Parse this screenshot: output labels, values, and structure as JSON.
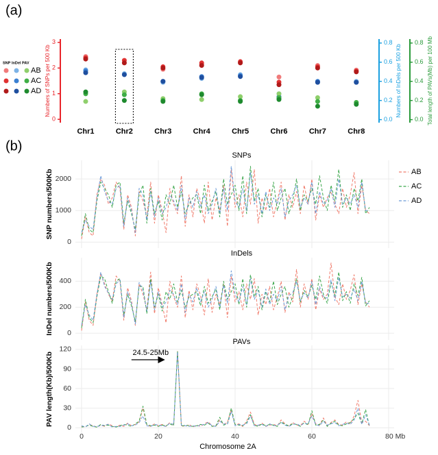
{
  "chart_data": [
    {
      "type": "dot",
      "panel": "(a)",
      "categories": [
        "Chr1",
        "Chr2",
        "Chr3",
        "Chr4",
        "Chr5",
        "Chr6",
        "Chr7",
        "Chr8"
      ],
      "highlight": "Chr2",
      "legend_keys": [
        "AB",
        "AC",
        "AD"
      ],
      "groups": [
        {
          "name": "SNP",
          "ylabel": "Numbers of SNPs per 500 Kb",
          "axis_color": "#e8242a",
          "ylim": [
            -0.05,
            3.05
          ],
          "yticks": [
            0,
            1,
            2,
            3
          ],
          "colors": [
            "#f07b7b",
            "#e03232",
            "#b01a1a"
          ],
          "values": [
            [
              2.45,
              2.2,
              1.95,
              2.15,
              2.2,
              1.65,
              2.1,
              1.92
            ],
            [
              2.4,
              2.3,
              2.05,
              2.2,
              2.25,
              1.45,
              2.05,
              1.88
            ],
            [
              2.35,
              2.2,
              2.0,
              2.1,
              2.2,
              1.35,
              2.0,
              1.85
            ]
          ]
        },
        {
          "name": "InDel",
          "ylabel": "Numbers of InDels per 500 Kb",
          "axis_color": "#1aa0e0",
          "ylim": [
            -0.01,
            0.82
          ],
          "yticks": [
            {
              "value": 0,
              "label": "0.0"
            },
            {
              "value": 0.2,
              "label": "0.2"
            },
            {
              "value": 0.4,
              "label": "0.4"
            },
            {
              "value": 0.6,
              "label": "0.6"
            },
            {
              "value": 0.8,
              "label": "0.8"
            }
          ],
          "colors": [
            "#7db3e6",
            "#3b80d2",
            "#1f4f9f"
          ],
          "values": [
            [
              0.52,
              0.48,
              0.39,
              0.43,
              0.47,
              0.27,
              0.39,
              0.4
            ],
            [
              0.51,
              0.47,
              0.4,
              0.45,
              0.46,
              0.24,
              0.4,
              0.39
            ],
            [
              0.49,
              0.47,
              0.4,
              0.44,
              0.45,
              0.22,
              0.39,
              0.39
            ]
          ]
        },
        {
          "name": "PAV",
          "ylabel": "Total length of PAVs(Mb) per 100 Mb",
          "axis_color": "#2a9a3a",
          "ylim": [
            -0.01,
            0.82
          ],
          "yticks": [
            {
              "value": 0,
              "label": "0.0"
            },
            {
              "value": 0.2,
              "label": "0.2"
            },
            {
              "value": 0.4,
              "label": "0.4"
            },
            {
              "value": 0.6,
              "label": "0.6"
            },
            {
              "value": 0.8,
              "label": "0.8"
            }
          ],
          "colors": [
            "#8fcf6c",
            "#3fae46",
            "#1e8a2e"
          ],
          "values": [
            [
              0.19,
              0.29,
              0.22,
              0.21,
              0.24,
              0.27,
              0.23,
              0.18
            ],
            [
              0.27,
              0.26,
              0.2,
              0.27,
              0.2,
              0.23,
              0.19,
              0.18
            ],
            [
              0.29,
              0.2,
              0.19,
              0.26,
              0.19,
              0.21,
              0.14,
              0.16
            ]
          ]
        }
      ]
    },
    {
      "type": "line",
      "panel": "(b)",
      "xlabel": "Chromosome 2A",
      "xlim": [
        0,
        80
      ],
      "xticks": [
        0,
        20,
        40,
        60,
        {
          "value": 80,
          "label": "80 Mb"
        }
      ],
      "grid": true,
      "dashed": true,
      "series_names": [
        "AB",
        "AC",
        "AD"
      ],
      "colors": [
        "#f07a6a",
        "#3aa64a",
        "#6a9ad8"
      ],
      "x": [
        0,
        1,
        2,
        3,
        4,
        5,
        6,
        7,
        8,
        9,
        10,
        11,
        12,
        13,
        14,
        15,
        16,
        17,
        18,
        19,
        20,
        21,
        22,
        23,
        24,
        25,
        26,
        27,
        28,
        29,
        30,
        31,
        32,
        33,
        34,
        35,
        36,
        37,
        38,
        39,
        40,
        41,
        42,
        43,
        44,
        45,
        46,
        47,
        48,
        49,
        50,
        51,
        52,
        53,
        54,
        55,
        56,
        57,
        58,
        59,
        60,
        61,
        62,
        63,
        64,
        65,
        66,
        67,
        68,
        69,
        70,
        71,
        72,
        73,
        74,
        75
      ],
      "subplots": [
        {
          "title": "SNPs",
          "ylabel": "SNP numbers/500Kb",
          "ylim": [
            -100,
            2500
          ],
          "yticks": [
            0,
            1000,
            2000
          ],
          "values": [
            [
              100,
              800,
              300,
              200,
              1500,
              2000,
              1800,
              1200,
              1400,
              1900,
              1700,
              400,
              1500,
              1100,
              200,
              1600,
              1300,
              800,
              1900,
              600,
              1500,
              1000,
              300,
              1700,
              1200,
              900,
              2100,
              500,
              1500,
              800,
              1700,
              1300,
              600,
              1900,
              700,
              1400,
              1000,
              1800,
              500,
              2300,
              1100,
              1500,
              800,
              1900,
              1200,
              2300,
              600,
              1400,
              1000,
              1700,
              800,
              1300,
              1900,
              700,
              1500,
              1100,
              1600,
              900,
              1800,
              1200,
              2000,
              700,
              1500,
              1100,
              1400,
              1600,
              1200,
              900,
              1700,
              1100,
              1500,
              2200,
              900,
              1800,
              1000,
              900
            ],
            [
              200,
              900,
              400,
              300,
              1300,
              1900,
              1700,
              1500,
              1100,
              1800,
              1900,
              600,
              1300,
              900,
              400,
              1500,
              1800,
              600,
              1700,
              900,
              1300,
              700,
              1500,
              1200,
              1800,
              1100,
              1600,
              900,
              1200,
              1400,
              1500,
              900,
              1800,
              1000,
              1300,
              1600,
              800,
              2000,
              1200,
              1500,
              1800,
              1000,
              2100,
              900,
              2400,
              1300,
              1700,
              800,
              1500,
              1100,
              1900,
              1000,
              1400,
              1700,
              900,
              1300,
              2000,
              1000,
              1500,
              1300,
              1700,
              1200,
              2100,
              1400,
              1000,
              1800,
              1300,
              2300,
              1100,
              1500,
              1000,
              1700,
              1300,
              2000,
              900,
              1100
            ],
            [
              300,
              700,
              500,
              400,
              1400,
              2100,
              1600,
              1300,
              1200,
              1700,
              1800,
              500,
              1400,
              1000,
              300,
              1700,
              1500,
              700,
              1600,
              800,
              1400,
              900,
              1100,
              1500,
              1300,
              1000,
              1800,
              700,
              1400,
              1100,
              1600,
              1100,
              1500,
              900,
              1200,
              1700,
              900,
              1700,
              1000,
              2400,
              1300,
              1100,
              1700,
              1000,
              2200,
              1200,
              1500,
              900,
              1600,
              1000,
              1400,
              1200,
              1700,
              800,
              1300,
              1500,
              1800,
              1100,
              1400,
              1200,
              1900,
              900,
              1600,
              1200,
              1300,
              1700,
              1100,
              2000,
              1200,
              1400,
              1200,
              1500,
              1100,
              1900,
              1000,
              1000
            ]
          ]
        },
        {
          "title": "InDels",
          "ylabel": "InDel numbers/500Kb",
          "ylim": [
            -30,
            560
          ],
          "yticks": [
            0,
            200,
            400
          ],
          "values": [
            [
              20,
              240,
              100,
              60,
              300,
              460,
              380,
              300,
              250,
              440,
              400,
              100,
              350,
              250,
              60,
              380,
              300,
              180,
              470,
              150,
              350,
              220,
              80,
              400,
              280,
              200,
              440,
              120,
              330,
              180,
              380,
              290,
              140,
              420,
              160,
              300,
              220,
              380,
              120,
              440,
              240,
              320,
              180,
              380,
              260,
              420,
              140,
              300,
              220,
              360,
              180,
              280,
              400,
              160,
              320,
              240,
              490,
              200,
              380,
              260,
              420,
              180,
              340,
              260,
              300,
              540,
              280,
              220,
              380,
              260,
              330,
              450,
              220,
              380,
              240,
              200
            ],
            [
              40,
              260,
              120,
              80,
              280,
              440,
              420,
              320,
              230,
              400,
              420,
              140,
              300,
              210,
              90,
              360,
              360,
              150,
              420,
              200,
              300,
              170,
              320,
              260,
              380,
              240,
              330,
              200,
              280,
              300,
              320,
              210,
              360,
              230,
              280,
              340,
              180,
              400,
              260,
              320,
              380,
              220,
              420,
              200,
              450,
              280,
              360,
              180,
              320,
              240,
              400,
              220,
              300,
              360,
              200,
              280,
              420,
              240,
              330,
              280,
              370,
              260,
              440,
              300,
              230,
              390,
              290,
              470,
              250,
              320,
              230,
              380,
              290,
              430,
              210,
              250
            ],
            [
              60,
              220,
              140,
              100,
              300,
              470,
              360,
              310,
              260,
              380,
              410,
              120,
              320,
              230,
              70,
              390,
              330,
              170,
              400,
              180,
              320,
              200,
              240,
              330,
              300,
              220,
              380,
              160,
              300,
              240,
              350,
              240,
              320,
              200,
              260,
              360,
              200,
              370,
              230,
              480,
              300,
              240,
              360,
              220,
              420,
              260,
              330,
              200,
              340,
              220,
              300,
              250,
              360,
              180,
              290,
              310,
              400,
              250,
              310,
              270,
              400,
              220,
              360,
              280,
              270,
              410,
              250,
              430,
              280,
              300,
              270,
              340,
              250,
              400,
              230,
              230
            ]
          ]
        },
        {
          "title": "PAVs",
          "ylabel": "PAV length(Kb)/500Kb",
          "ylim": [
            -4,
            122
          ],
          "yticks": [
            0,
            30,
            60,
            90,
            120
          ],
          "annotation": "24.5-25Mb",
          "values": [
            [
              2,
              1,
              5,
              3,
              1,
              4,
              2,
              6,
              3,
              1,
              4,
              2,
              7,
              3,
              5,
              9,
              30,
              4,
              2,
              6,
              3,
              5,
              2,
              8,
              4,
              117,
              3,
              2,
              5,
              1,
              4,
              2,
              6,
              9,
              3,
              2,
              12,
              5,
              8,
              28,
              4,
              6,
              2,
              10,
              24,
              5,
              3,
              7,
              2,
              4,
              5,
              3,
              12,
              6,
              2,
              8,
              4,
              3,
              10,
              5,
              22,
              6,
              4,
              15,
              3,
              8,
              12,
              5,
              4,
              9,
              6,
              18,
              42,
              8,
              10,
              3
            ],
            [
              1,
              2,
              4,
              2,
              1,
              5,
              3,
              4,
              2,
              1,
              3,
              5,
              4,
              2,
              6,
              10,
              33,
              5,
              3,
              4,
              2,
              4,
              3,
              6,
              3,
              118,
              2,
              4,
              3,
              2,
              3,
              5,
              4,
              7,
              2,
              3,
              16,
              4,
              6,
              30,
              5,
              4,
              3,
              8,
              20,
              4,
              2,
              6,
              3,
              5,
              4,
              2,
              9,
              5,
              3,
              6,
              5,
              2,
              8,
              4,
              26,
              4,
              5,
              12,
              2,
              7,
              10,
              4,
              3,
              6,
              8,
              14,
              22,
              6,
              28,
              2
            ],
            [
              3,
              1,
              6,
              2,
              2,
              3,
              4,
              5,
              1,
              2,
              2,
              4,
              6,
              3,
              4,
              8,
              18,
              3,
              2,
              5,
              4,
              3,
              2,
              7,
              5,
              116,
              4,
              3,
              2,
              3,
              2,
              4,
              5,
              8,
              3,
              2,
              10,
              6,
              5,
              25,
              3,
              5,
              4,
              6,
              18,
              3,
              4,
              5,
              2,
              6,
              3,
              4,
              8,
              4,
              2,
              5,
              6,
              3,
              7,
              6,
              18,
              5,
              3,
              10,
              4,
              6,
              8,
              3,
              5,
              7,
              5,
              12,
              30,
              5,
              20,
              4
            ]
          ]
        }
      ]
    }
  ]
}
